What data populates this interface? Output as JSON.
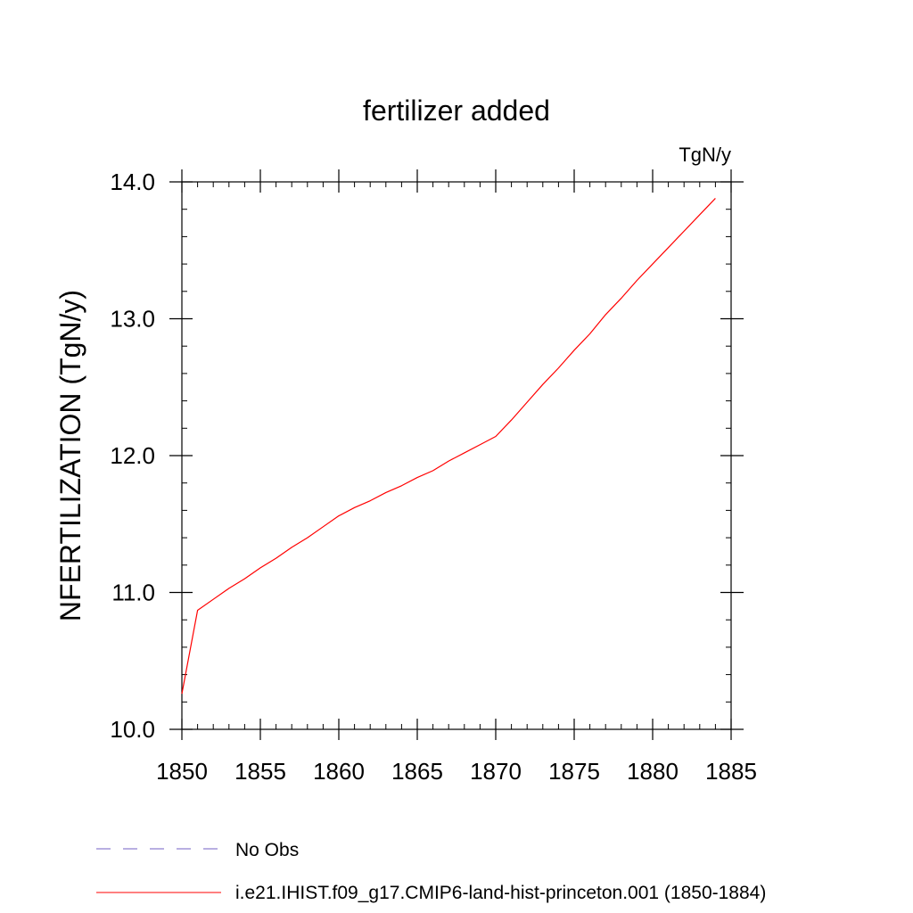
{
  "chart_data": {
    "type": "line",
    "title": "fertilizer added",
    "units_label": "TgN/y",
    "ylabel": "NFERTILIZATION  (TgN/y)",
    "xlabel": "",
    "xlim": [
      1850,
      1885
    ],
    "ylim": [
      10.0,
      14.0
    ],
    "x_ticks": [
      1850,
      1855,
      1860,
      1865,
      1870,
      1875,
      1880,
      1885
    ],
    "y_ticks": [
      "10.0",
      "11.0",
      "12.0",
      "13.0",
      "14.0"
    ],
    "x_minor_step": 1,
    "y_minor_step": 0.2,
    "grid": false,
    "legend_position": "bottom",
    "series": [
      {
        "name": "i.e21.IHIST.f09_g17.CMIP6-land-hist-princeton.001 (1850-1884)",
        "color": "#ff0000",
        "x": [
          1850,
          1851,
          1852,
          1853,
          1854,
          1855,
          1856,
          1857,
          1858,
          1859,
          1860,
          1861,
          1862,
          1863,
          1864,
          1865,
          1866,
          1867,
          1868,
          1869,
          1870,
          1871,
          1872,
          1873,
          1874,
          1875,
          1876,
          1877,
          1878,
          1879,
          1880,
          1881,
          1882,
          1883,
          1884
        ],
        "y": [
          10.26,
          10.87,
          10.95,
          11.03,
          11.1,
          11.18,
          11.25,
          11.33,
          11.4,
          11.48,
          11.56,
          11.62,
          11.67,
          11.73,
          11.78,
          11.84,
          11.89,
          11.96,
          12.02,
          12.08,
          12.14,
          12.26,
          12.39,
          12.52,
          12.64,
          12.77,
          12.89,
          13.03,
          13.15,
          13.28,
          13.4,
          13.52,
          13.64,
          13.76,
          13.88
        ]
      }
    ],
    "legend": [
      {
        "label": "No Obs",
        "color": "#8f7fd0",
        "style": "dashed"
      },
      {
        "label": "i.e21.IHIST.f09_g17.CMIP6-land-hist-princeton.001 (1850-1884)",
        "color": "#ff0000",
        "style": "solid"
      }
    ]
  }
}
